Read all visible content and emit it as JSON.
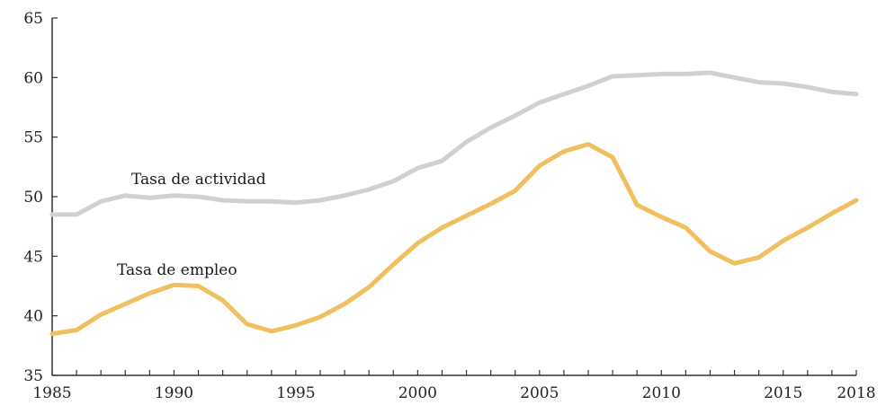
{
  "chart_data": {
    "type": "line",
    "title": "",
    "xlabel": "",
    "ylabel": "",
    "xlim": [
      1985,
      2018
    ],
    "ylim": [
      35,
      65
    ],
    "x_ticks": [
      1985,
      1990,
      1995,
      2000,
      2005,
      2010,
      2015,
      2018
    ],
    "y_ticks": [
      35,
      40,
      45,
      50,
      55,
      60,
      65
    ],
    "grid": false,
    "legend": "inline-labels",
    "x": [
      1985,
      1986,
      1987,
      1988,
      1989,
      1990,
      1991,
      1992,
      1993,
      1994,
      1995,
      1996,
      1997,
      1998,
      1999,
      2000,
      2001,
      2002,
      2003,
      2004,
      2005,
      2006,
      2007,
      2008,
      2009,
      2010,
      2011,
      2012,
      2013,
      2014,
      2015,
      2016,
      2017,
      2018
    ],
    "series": [
      {
        "name": "Tasa de actividad",
        "color": "#d0d0d0",
        "values": [
          48.5,
          48.5,
          49.6,
          50.1,
          49.9,
          50.1,
          50.0,
          49.7,
          49.6,
          49.6,
          49.5,
          49.7,
          50.1,
          50.6,
          51.3,
          52.4,
          53.0,
          54.6,
          55.8,
          56.8,
          57.9,
          58.6,
          59.3,
          60.1,
          60.2,
          60.3,
          60.3,
          60.4,
          60.0,
          59.6,
          59.5,
          59.2,
          58.8,
          58.6
        ]
      },
      {
        "name": "Tasa de empleo",
        "color": "#f0c060",
        "values": [
          38.5,
          38.8,
          40.1,
          41.0,
          41.9,
          42.6,
          42.5,
          41.3,
          39.3,
          38.7,
          39.2,
          39.9,
          41.0,
          42.4,
          44.3,
          46.1,
          47.4,
          48.4,
          49.4,
          50.5,
          52.6,
          53.8,
          54.4,
          53.3,
          49.3,
          48.3,
          47.4,
          45.4,
          44.4,
          44.9,
          46.3,
          47.4,
          48.6,
          49.7
        ]
      }
    ]
  }
}
